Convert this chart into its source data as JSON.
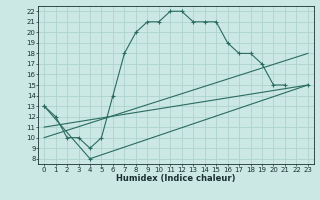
{
  "xlabel": "Humidex (Indice chaleur)",
  "bg_color": "#cce8e4",
  "line_color": "#2a6b60",
  "grid_color": "#aed4ce",
  "xlim": [
    -0.5,
    23.5
  ],
  "ylim": [
    7.5,
    22.5
  ],
  "xticks": [
    0,
    1,
    2,
    3,
    4,
    5,
    6,
    7,
    8,
    9,
    10,
    11,
    12,
    13,
    14,
    15,
    16,
    17,
    18,
    19,
    20,
    21,
    22,
    23
  ],
  "yticks": [
    8,
    9,
    10,
    11,
    12,
    13,
    14,
    15,
    16,
    17,
    18,
    19,
    20,
    21,
    22
  ],
  "line1_x": [
    0,
    1,
    2,
    3,
    4,
    5,
    6,
    7,
    8,
    9,
    10,
    11,
    12,
    13,
    14,
    15,
    16,
    17,
    18,
    19,
    20,
    21
  ],
  "line1_y": [
    13,
    12,
    10,
    10,
    9,
    10,
    14,
    18,
    20,
    21,
    21,
    22,
    22,
    21,
    21,
    21,
    19,
    18,
    18,
    17,
    15,
    15
  ],
  "line2_x": [
    0,
    4,
    23
  ],
  "line2_y": [
    13,
    8,
    15
  ],
  "line3_x": [
    0,
    23
  ],
  "line3_y": [
    11,
    15
  ],
  "line4_x": [
    0,
    23
  ],
  "line4_y": [
    10,
    18
  ],
  "tick_fontsize": 5.0,
  "xlabel_fontsize": 6.0,
  "lw": 0.8,
  "marker_size": 3.5
}
